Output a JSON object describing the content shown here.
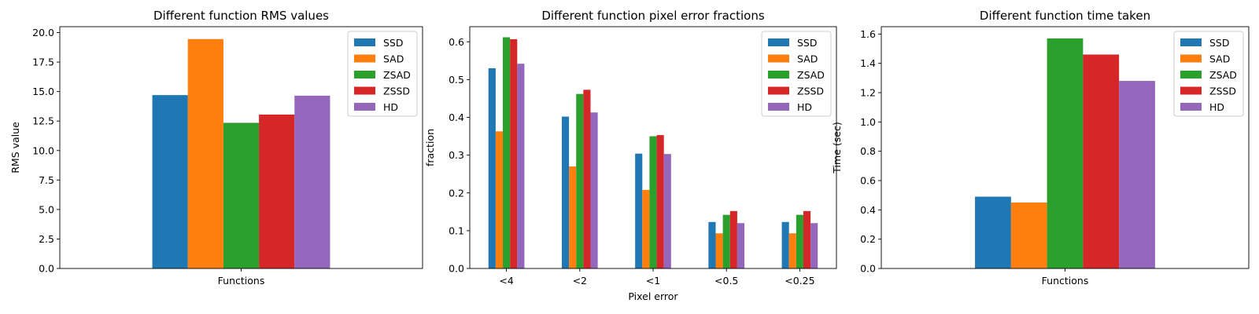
{
  "colors": {
    "SSD": "#1f77b4",
    "SAD": "#ff7f0e",
    "ZSAD": "#2ca02c",
    "ZSSD": "#d62728",
    "HD": "#9467bd"
  },
  "chart_data": [
    {
      "type": "bar",
      "title": "Different function RMS values",
      "xlabel": "",
      "ylabel": "RMS value",
      "categories": [
        "Functions"
      ],
      "ylim": [
        0,
        20.5
      ],
      "yticks": [
        "0.0",
        "2.5",
        "5.0",
        "7.5",
        "10.0",
        "12.5",
        "15.0",
        "17.5",
        "20.0"
      ],
      "legend": "top-right",
      "series": [
        {
          "name": "SSD",
          "values": [
            14.7
          ]
        },
        {
          "name": "SAD",
          "values": [
            19.45
          ]
        },
        {
          "name": "ZSAD",
          "values": [
            12.35
          ]
        },
        {
          "name": "ZSSD",
          "values": [
            13.05
          ]
        },
        {
          "name": "HD",
          "values": [
            14.65
          ]
        }
      ]
    },
    {
      "type": "bar",
      "title": "Different function pixel error fractions",
      "xlabel": "Pixel error",
      "ylabel": "fraction",
      "categories": [
        "<4",
        "<2",
        "<1",
        "<0.5",
        "<0.25"
      ],
      "ylim": [
        0,
        0.64
      ],
      "yticks": [
        "0.0",
        "0.1",
        "0.2",
        "0.3",
        "0.4",
        "0.5",
        "0.6"
      ],
      "legend": "top-right",
      "series": [
        {
          "name": "SSD",
          "values": [
            0.53,
            0.402,
            0.304,
            0.123,
            0.123
          ]
        },
        {
          "name": "SAD",
          "values": [
            0.363,
            0.27,
            0.208,
            0.093,
            0.093
          ]
        },
        {
          "name": "ZSAD",
          "values": [
            0.612,
            0.462,
            0.35,
            0.142,
            0.142
          ]
        },
        {
          "name": "ZSSD",
          "values": [
            0.607,
            0.473,
            0.353,
            0.152,
            0.152
          ]
        },
        {
          "name": "HD",
          "values": [
            0.542,
            0.413,
            0.303,
            0.12,
            0.12
          ]
        }
      ]
    },
    {
      "type": "bar",
      "title": "Different function time taken",
      "xlabel": "",
      "ylabel": "Time (sec)",
      "categories": [
        "Functions"
      ],
      "ylim": [
        0,
        1.65
      ],
      "yticks": [
        "0.0",
        "0.2",
        "0.4",
        "0.6",
        "0.8",
        "1.0",
        "1.2",
        "1.4",
        "1.6"
      ],
      "legend": "top-right",
      "series": [
        {
          "name": "SSD",
          "values": [
            0.49
          ]
        },
        {
          "name": "SAD",
          "values": [
            0.45
          ]
        },
        {
          "name": "ZSAD",
          "values": [
            1.57
          ]
        },
        {
          "name": "ZSSD",
          "values": [
            1.46
          ]
        },
        {
          "name": "HD",
          "values": [
            1.28
          ]
        }
      ]
    }
  ]
}
